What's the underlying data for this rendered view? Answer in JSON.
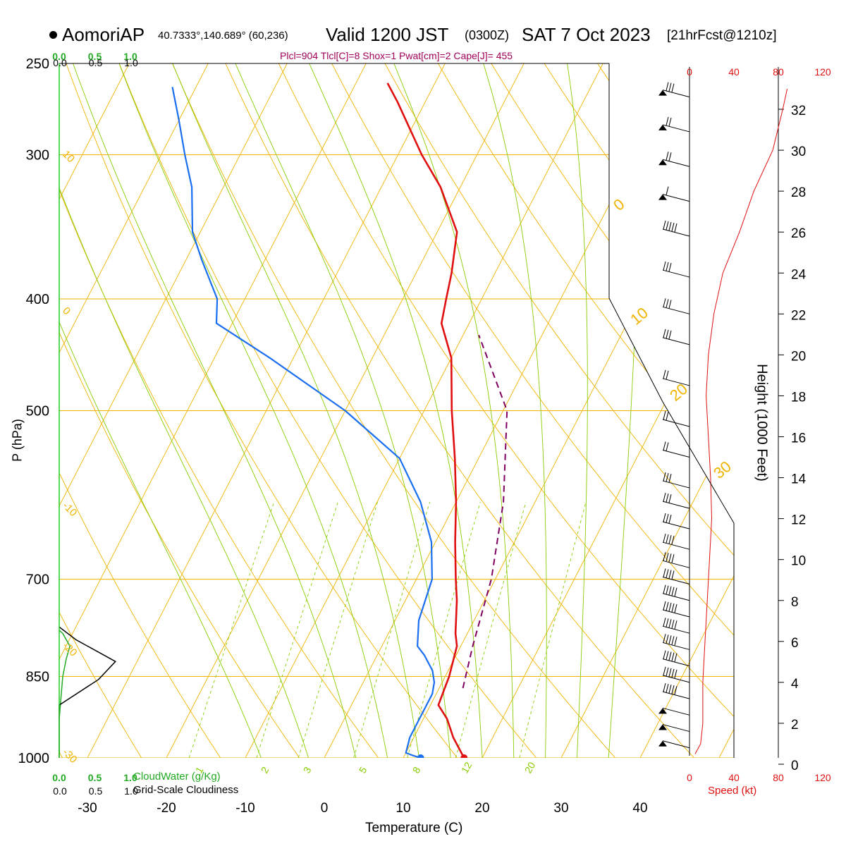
{
  "header": {
    "station": "AomoriAP",
    "coords": "40.7333°,140.689° (60,236)",
    "valid": "Valid 1200 JST",
    "zulu": "(0300Z)",
    "date": "SAT 7 Oct 2023",
    "fcst": "[21hrFcst@1210z]",
    "indices": "Plcl=904 Tlcl[C]=8 Shox=1 Pwat[cm]=2 Cape[J]= 455"
  },
  "colors": {
    "temperature": "#e01010",
    "dewpoint": "#1a6ef0",
    "parcel": "#800060",
    "isotherm": "#f0b400",
    "dry_adiabat": "#f0b400",
    "moist_adiabat": "#88cc00",
    "mixing_ratio": "#88cc00",
    "cloud_water": "#22aa22",
    "speed": "#e01010"
  },
  "chart_data": {
    "type": "line",
    "title": "Valid 1200 JST (0300Z) SAT 7 Oct 2023",
    "xlabel": "Temperature (C)",
    "ylabel": "P (hPa)",
    "xlim": [
      -30,
      40
    ],
    "ylim": [
      1000,
      250
    ],
    "y_scale": "log",
    "pressure_ticks": [
      "250",
      "300",
      "400",
      "500",
      "700",
      "850",
      "1000"
    ],
    "temperature_ticks": [
      "-30",
      "-20",
      "-10",
      "0",
      "10",
      "20",
      "30",
      "40"
    ],
    "isotherm_labels": [
      "10",
      "0",
      "-10",
      "-20",
      "-30"
    ],
    "theta_labels": [
      "0",
      "10",
      "20",
      "30"
    ],
    "mixing_ratio_labels": [
      "1",
      "2",
      "3",
      "5",
      "8",
      "12",
      "20"
    ],
    "series": [
      {
        "name": "Temperature",
        "points": [
          [
            17.7,
            1000
          ],
          [
            15.0,
            960
          ],
          [
            13.0,
            925
          ],
          [
            11.0,
            900
          ],
          [
            10.5,
            850
          ],
          [
            9.5,
            800
          ],
          [
            8.5,
            780
          ],
          [
            6.5,
            730
          ],
          [
            5.0,
            700
          ],
          [
            2.5,
            650
          ],
          [
            0.0,
            600
          ],
          [
            -3.0,
            550
          ],
          [
            -6.5,
            500
          ],
          [
            -10.0,
            450
          ],
          [
            -13.5,
            420
          ],
          [
            -14.5,
            400
          ],
          [
            -15.5,
            380
          ],
          [
            -17.5,
            350
          ],
          [
            -22.5,
            320
          ],
          [
            -27.0,
            300
          ],
          [
            -33.5,
            270
          ],
          [
            -36.0,
            260
          ]
        ]
      },
      {
        "name": "Dewpoint",
        "points": [
          [
            12.2,
            1000
          ],
          [
            11.0,
            995
          ],
          [
            10.0,
            990
          ],
          [
            9.5,
            960
          ],
          [
            9.5,
            920
          ],
          [
            9.5,
            880
          ],
          [
            9.0,
            860
          ],
          [
            8.0,
            840
          ],
          [
            6.0,
            815
          ],
          [
            4.5,
            800
          ],
          [
            3.0,
            760
          ],
          [
            2.0,
            700
          ],
          [
            -0.5,
            650
          ],
          [
            -4.5,
            600
          ],
          [
            -10.0,
            550
          ],
          [
            -20.0,
            500
          ],
          [
            -33.0,
            450
          ],
          [
            -42.0,
            420
          ],
          [
            -43.5,
            400
          ],
          [
            -48.0,
            370
          ],
          [
            -51.0,
            350
          ],
          [
            -54.0,
            320
          ],
          [
            -57.0,
            300
          ],
          [
            -60.0,
            280
          ],
          [
            -63.0,
            262
          ]
        ]
      },
      {
        "name": "Parcel",
        "points": [
          [
            13.0,
            870
          ],
          [
            11.5,
            800
          ],
          [
            9.5,
            700
          ],
          [
            6.0,
            600
          ],
          [
            0.5,
            500
          ],
          [
            -8.0,
            430
          ]
        ]
      }
    ],
    "cloud_water": {
      "label": "CloudWater (g/Kg)",
      "ticks": [
        "0.0",
        "0.5",
        "1.0"
      ],
      "points": [
        [
          0.0,
          925
        ],
        [
          0.05,
          850
        ],
        [
          0.1,
          820
        ],
        [
          0.15,
          800
        ],
        [
          0.05,
          780
        ],
        [
          0.0,
          775
        ]
      ]
    },
    "cloudiness": {
      "label": "Grid-Scale Cloudiness",
      "ticks": [
        "0.0",
        "0.5",
        "1.0"
      ],
      "points": [
        [
          0.0,
          1000
        ],
        [
          0.0,
          900
        ],
        [
          0.7,
          855
        ],
        [
          1.0,
          825
        ],
        [
          0.3,
          790
        ],
        [
          0.0,
          770
        ]
      ]
    },
    "wind_speed": {
      "label": "Speed (kt)",
      "ticks": [
        "0",
        "40",
        "80",
        "120"
      ],
      "height_label": "Height (1000 Feet)",
      "height_ticks": [
        "0",
        "2",
        "4",
        "6",
        "8",
        "10",
        "12",
        "14",
        "16",
        "18",
        "20",
        "22",
        "24",
        "26",
        "28",
        "30",
        "32"
      ],
      "profile": [
        [
          5,
          0.5
        ],
        [
          10,
          1
        ],
        [
          12,
          2
        ],
        [
          12,
          4
        ],
        [
          14,
          6
        ],
        [
          16,
          8
        ],
        [
          18,
          10
        ],
        [
          20,
          12
        ],
        [
          19,
          14
        ],
        [
          17,
          16
        ],
        [
          15,
          18
        ],
        [
          17,
          20
        ],
        [
          22,
          22
        ],
        [
          30,
          24
        ],
        [
          45,
          26
        ],
        [
          58,
          28
        ],
        [
          75,
          30
        ],
        [
          84,
          32
        ],
        [
          88,
          33
        ]
      ],
      "barbs": [
        [
          0.8,
          50
        ],
        [
          1.6,
          50
        ],
        [
          2.4,
          50
        ],
        [
          3.2,
          48
        ],
        [
          4.0,
          48
        ],
        [
          4.8,
          48
        ],
        [
          5.6,
          48
        ],
        [
          6.4,
          48
        ],
        [
          7.2,
          45
        ],
        [
          8.0,
          45
        ],
        [
          8.8,
          42
        ],
        [
          9.6,
          40
        ],
        [
          10.5,
          35
        ],
        [
          11.5,
          30
        ],
        [
          12.5,
          28
        ],
        [
          13.5,
          25
        ],
        [
          15.0,
          20
        ],
        [
          16.5,
          20
        ],
        [
          18.5,
          20
        ],
        [
          20.5,
          25
        ],
        [
          22.0,
          25
        ],
        [
          23.8,
          30
        ],
        [
          25.8,
          45
        ],
        [
          27.5,
          55
        ],
        [
          29.2,
          65
        ],
        [
          30.9,
          70
        ],
        [
          32.6,
          75
        ]
      ]
    }
  }
}
